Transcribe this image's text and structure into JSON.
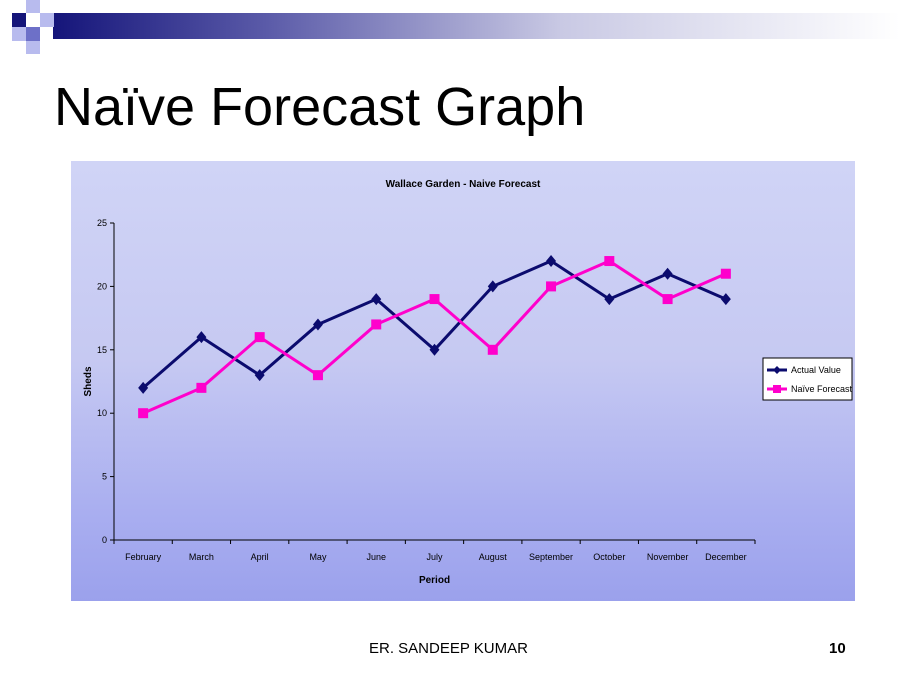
{
  "slide": {
    "title": "Naïve Forecast Graph",
    "footer_author": "ER. SANDEEP KUMAR",
    "page_number": "10"
  },
  "colors": {
    "actual": "#0b0b6e",
    "forecast": "#ff00cc",
    "deco_dark": "#15157a",
    "deco_light": "#b8bbee"
  },
  "chart_data": {
    "type": "line",
    "title": "Wallace Garden - Naive Forecast",
    "xlabel": "Period",
    "ylabel": "Sheds",
    "ylim": [
      0,
      25
    ],
    "yticks": [
      0,
      5,
      10,
      15,
      20,
      25
    ],
    "categories": [
      "February",
      "March",
      "April",
      "May",
      "June",
      "July",
      "August",
      "September",
      "October",
      "November",
      "December"
    ],
    "series": [
      {
        "name": "Actual Value",
        "values": [
          12,
          16,
          13,
          17,
          19,
          15,
          20,
          22,
          19,
          21,
          19
        ],
        "marker": "diamond"
      },
      {
        "name": "Naïve Forecast",
        "values": [
          10,
          12,
          16,
          13,
          17,
          19,
          15,
          20,
          22,
          19,
          21
        ],
        "marker": "square"
      }
    ],
    "legend": "right"
  }
}
